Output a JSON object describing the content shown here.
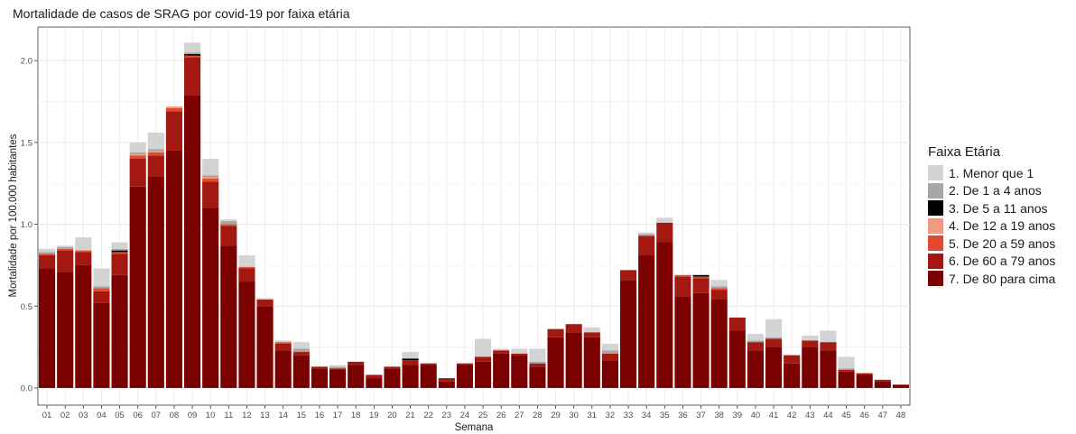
{
  "chart_data": {
    "type": "bar",
    "stacked": true,
    "title": "Mortalidade de casos de SRAG por covid-19 por faixa etária",
    "xlabel": "Semana",
    "ylabel": "Mortalidade por 100.000 habitantes",
    "ylim": [
      0,
      2.1
    ],
    "yticks": [
      "0.0",
      "0.5",
      "1.0",
      "1.5",
      "2.0"
    ],
    "grid": true,
    "legend_title": "Faixa Etária",
    "legend_position": "right",
    "categories": [
      "01",
      "02",
      "03",
      "04",
      "05",
      "06",
      "07",
      "08",
      "09",
      "10",
      "11",
      "12",
      "13",
      "14",
      "15",
      "16",
      "17",
      "18",
      "19",
      "20",
      "21",
      "22",
      "23",
      "24",
      "25",
      "26",
      "27",
      "28",
      "29",
      "30",
      "31",
      "32",
      "33",
      "34",
      "35",
      "36",
      "37",
      "38",
      "39",
      "40",
      "41",
      "42",
      "43",
      "44",
      "45",
      "46",
      "47",
      "48"
    ],
    "series": [
      {
        "name": "7. De 80 para cima",
        "color": "#7b0000",
        "values": [
          0.73,
          0.71,
          0.75,
          0.52,
          0.69,
          1.23,
          1.29,
          1.45,
          1.79,
          1.1,
          0.87,
          0.65,
          0.5,
          0.23,
          0.2,
          0.12,
          0.11,
          0.14,
          0.06,
          0.12,
          0.14,
          0.14,
          0.04,
          0.14,
          0.16,
          0.21,
          0.2,
          0.13,
          0.31,
          0.34,
          0.31,
          0.17,
          0.66,
          0.81,
          0.89,
          0.56,
          0.58,
          0.54,
          0.35,
          0.23,
          0.25,
          0.15,
          0.25,
          0.23,
          0.1,
          0.08,
          0.04,
          0.02
        ]
      },
      {
        "name": "6. De 60 a 79 anos",
        "color": "#a31912",
        "values": [
          0.08,
          0.13,
          0.08,
          0.07,
          0.13,
          0.17,
          0.13,
          0.24,
          0.23,
          0.16,
          0.12,
          0.08,
          0.04,
          0.04,
          0.02,
          0.01,
          0.01,
          0.02,
          0.02,
          0.01,
          0.03,
          0.01,
          0.02,
          0.01,
          0.03,
          0.02,
          0.01,
          0.02,
          0.05,
          0.05,
          0.03,
          0.04,
          0.06,
          0.12,
          0.12,
          0.12,
          0.09,
          0.06,
          0.08,
          0.05,
          0.05,
          0.05,
          0.04,
          0.05,
          0.01,
          0.01,
          0.01,
          0.0
        ]
      },
      {
        "name": "5. De 20 a 59 anos",
        "color": "#e04a32",
        "values": [
          0.01,
          0.01,
          0.01,
          0.02,
          0.01,
          0.02,
          0.02,
          0.02,
          0.01,
          0.02,
          0.01,
          0.01,
          0.0,
          0.01,
          0.0,
          0.0,
          0.0,
          0.0,
          0.0,
          0.0,
          0.0,
          0.0,
          0.0,
          0.0,
          0.0,
          0.0,
          0.0,
          0.0,
          0.0,
          0.0,
          0.0,
          0.0,
          0.0,
          0.0,
          0.0,
          0.01,
          0.01,
          0.01,
          0.0,
          0.0,
          0.0,
          0.0,
          0.0,
          0.0,
          0.0,
          0.0,
          0.0,
          0.0
        ]
      },
      {
        "name": "4. De 12 a 19 anos",
        "color": "#f09a82",
        "values": [
          0.0,
          0.0,
          0.0,
          0.0,
          0.0,
          0.01,
          0.01,
          0.01,
          0.0,
          0.01,
          0.0,
          0.0,
          0.0,
          0.0,
          0.0,
          0.0,
          0.0,
          0.0,
          0.0,
          0.0,
          0.0,
          0.0,
          0.0,
          0.0,
          0.0,
          0.0,
          0.0,
          0.0,
          0.0,
          0.0,
          0.0,
          0.0,
          0.0,
          0.0,
          0.0,
          0.0,
          0.0,
          0.0,
          0.0,
          0.0,
          0.0,
          0.0,
          0.0,
          0.0,
          0.0,
          0.0,
          0.0,
          0.0
        ]
      },
      {
        "name": "3. De 5 a 11 anos",
        "color": "#000000",
        "values": [
          0.0,
          0.0,
          0.0,
          0.0,
          0.01,
          0.0,
          0.0,
          0.0,
          0.01,
          0.0,
          0.0,
          0.0,
          0.0,
          0.0,
          0.0,
          0.0,
          0.0,
          0.0,
          0.0,
          0.0,
          0.01,
          0.0,
          0.0,
          0.0,
          0.0,
          0.0,
          0.0,
          0.0,
          0.0,
          0.0,
          0.0,
          0.0,
          0.0,
          0.0,
          0.0,
          0.0,
          0.01,
          0.0,
          0.0,
          0.0,
          0.0,
          0.0,
          0.0,
          0.0,
          0.0,
          0.0,
          0.0,
          0.0
        ]
      },
      {
        "name": "2. De 1 a 4 anos",
        "color": "#a6a6a6",
        "values": [
          0.01,
          0.01,
          0.0,
          0.01,
          0.01,
          0.01,
          0.01,
          0.0,
          0.01,
          0.01,
          0.02,
          0.0,
          0.0,
          0.0,
          0.02,
          0.0,
          0.01,
          0.0,
          0.0,
          0.0,
          0.0,
          0.0,
          0.0,
          0.0,
          0.0,
          0.0,
          0.0,
          0.01,
          0.0,
          0.0,
          0.0,
          0.02,
          0.0,
          0.01,
          0.0,
          0.0,
          0.0,
          0.01,
          0.0,
          0.01,
          0.01,
          0.0,
          0.0,
          0.0,
          0.01,
          0.0,
          0.0,
          0.0
        ]
      },
      {
        "name": "1. Menor que 1",
        "color": "#d3d3d3",
        "values": [
          0.02,
          0.01,
          0.08,
          0.11,
          0.04,
          0.06,
          0.1,
          0.0,
          0.06,
          0.1,
          0.01,
          0.07,
          0.01,
          0.01,
          0.04,
          0.0,
          0.01,
          0.0,
          0.0,
          0.0,
          0.04,
          0.0,
          0.0,
          0.0,
          0.11,
          0.01,
          0.03,
          0.08,
          0.0,
          0.0,
          0.03,
          0.04,
          0.0,
          0.01,
          0.03,
          0.0,
          0.0,
          0.04,
          0.0,
          0.04,
          0.11,
          0.0,
          0.03,
          0.07,
          0.07,
          0.0,
          0.0,
          0.0
        ]
      }
    ]
  }
}
